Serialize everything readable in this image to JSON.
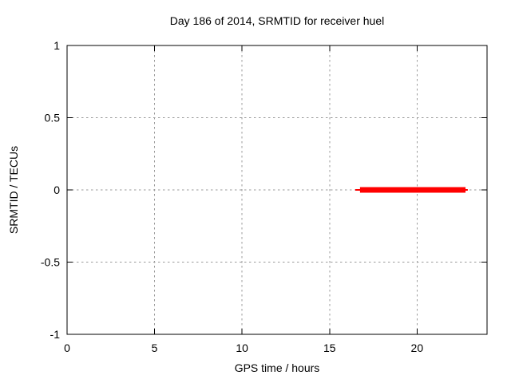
{
  "chart_data": {
    "type": "line",
    "title": "Day 186 of 2014, SRMTID for receiver huel",
    "xlabel": "GPS time / hours",
    "ylabel": "SRMTID / TECUs",
    "xlim": [
      0,
      24
    ],
    "ylim": [
      -1,
      1
    ],
    "xticks": [
      0,
      5,
      10,
      15,
      20
    ],
    "xtick_labels": [
      "0",
      "5",
      "10",
      "15",
      "20"
    ],
    "yticks": [
      -1,
      -0.5,
      0,
      0.5,
      1
    ],
    "ytick_labels": [
      "-1",
      "-0.5",
      "0",
      "0.5",
      "1"
    ],
    "grid": true,
    "legend": "none",
    "colors": {
      "series": "#ff0000",
      "grid": "#9b9b9b",
      "border": "#000000",
      "background": "#ffffff",
      "text": "#000000"
    },
    "series": [
      {
        "name": "SRMTID",
        "color": "#ff0000",
        "description": "constant value 0 TECUs between about 16.7 and 22.8 hours",
        "segments": [
          {
            "x1": 16.47,
            "x2": 22.9,
            "y": 0,
            "width": 2
          },
          {
            "x1": 16.74,
            "x2": 22.77,
            "y": 0,
            "width": 7
          }
        ]
      }
    ]
  }
}
